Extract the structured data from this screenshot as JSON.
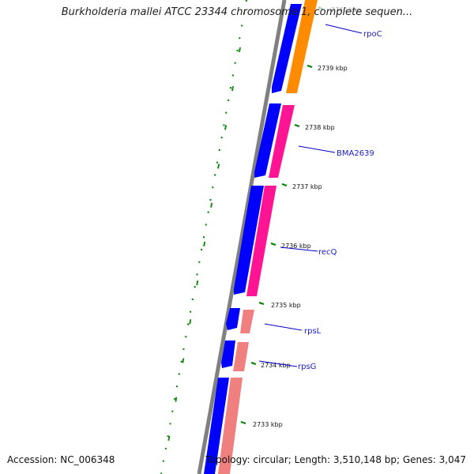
{
  "map": {
    "title": "Burkholderia mallei ATCC 23344 chromosome 1, complete sequen...",
    "accession": "Accession: NC_006348",
    "topology": "Topology: circular; Length: 3,510,148 bp; Genes: 3,047",
    "colors": {
      "backbone": "#808080",
      "gene_strand": "#0000ff",
      "rpoC": "#ff8c00",
      "pink": "#ff1493",
      "salmon": "#f08080",
      "ticks_dotted": "#008000",
      "label_line": "#0000cc"
    },
    "ticks": [
      {
        "label": "2740 kbp",
        "faded": true
      },
      {
        "label": "2739 kbp"
      },
      {
        "label": "2738 kbp"
      },
      {
        "label": "2737 kbp"
      },
      {
        "label": "2736 kbp"
      },
      {
        "label": "2735 kbp"
      },
      {
        "label": "2734 kbp"
      },
      {
        "label": "2733 kbp"
      }
    ],
    "genes": [
      {
        "name": "rpoC"
      },
      {
        "name": "BMA2639"
      },
      {
        "name": "recQ"
      },
      {
        "name": "rpsL"
      },
      {
        "name": "rpsG"
      }
    ]
  }
}
